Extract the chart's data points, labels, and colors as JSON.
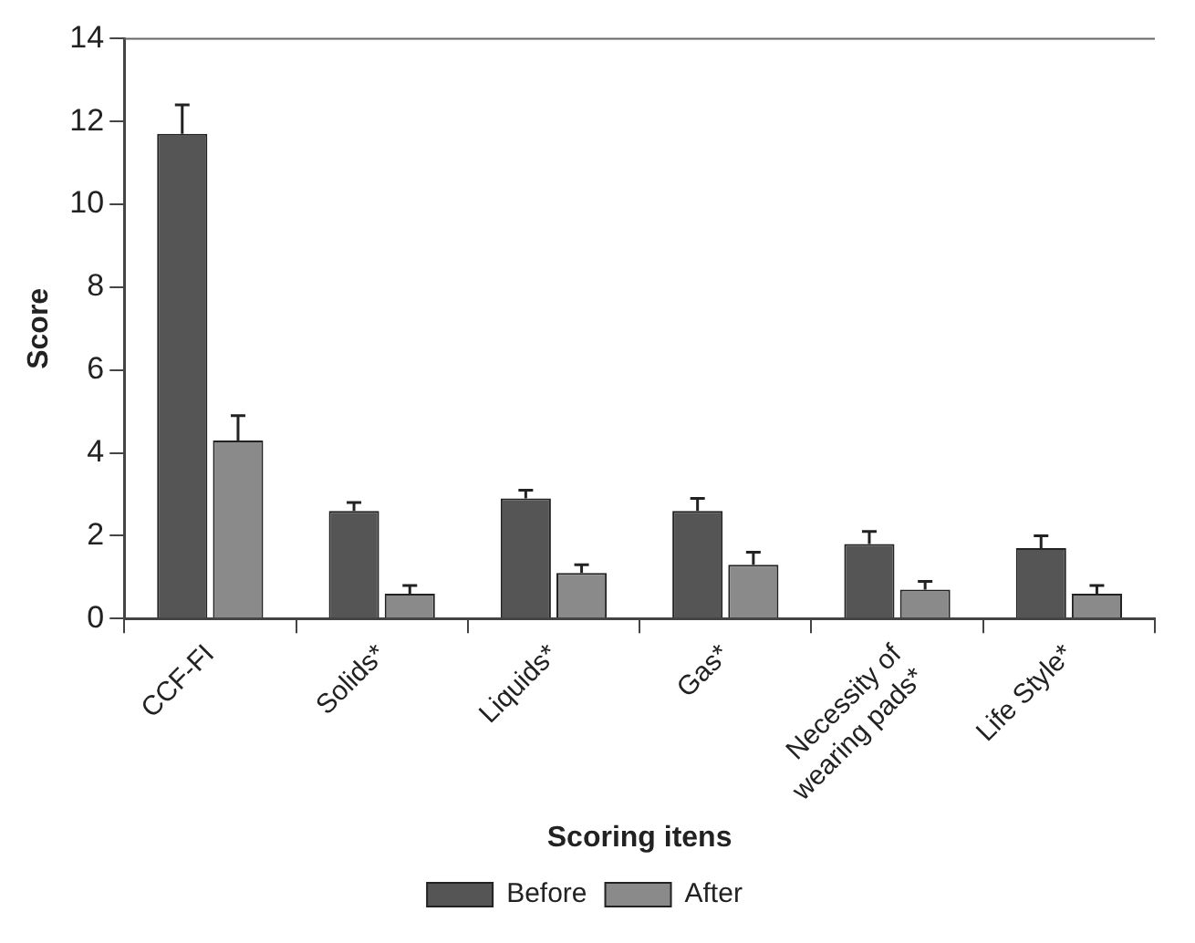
{
  "chart_data": {
    "type": "bar",
    "xlabel": "Scoring itens",
    "ylabel": "Score",
    "categories": [
      "CCF-FI",
      "Solids*",
      "Liquids*",
      "Gas*",
      "Necessity of wearing pads*",
      "Life Style*"
    ],
    "series": [
      {
        "name": "Before",
        "color": "#555555",
        "values": [
          11.7,
          2.6,
          2.9,
          2.6,
          1.8,
          1.7
        ],
        "errors": [
          [
            11.7,
            12.4
          ],
          [
            2.6,
            2.8
          ],
          [
            2.9,
            3.1
          ],
          [
            2.6,
            2.9
          ],
          [
            1.8,
            2.1
          ],
          [
            1.7,
            2.0
          ]
        ]
      },
      {
        "name": "After",
        "color": "#8a8a8a",
        "values": [
          4.3,
          0.6,
          1.1,
          1.3,
          0.7,
          0.6
        ],
        "errors": [
          [
            4.3,
            4.9
          ],
          [
            0.6,
            0.8
          ],
          [
            1.1,
            1.3
          ],
          [
            1.3,
            1.6
          ],
          [
            0.7,
            0.9
          ],
          [
            0.6,
            0.8
          ]
        ]
      }
    ],
    "ylim": [
      0,
      14
    ],
    "yticks": [
      0,
      2,
      4,
      6,
      8,
      10,
      12,
      14
    ],
    "grid": false,
    "legend": "bottom"
  }
}
